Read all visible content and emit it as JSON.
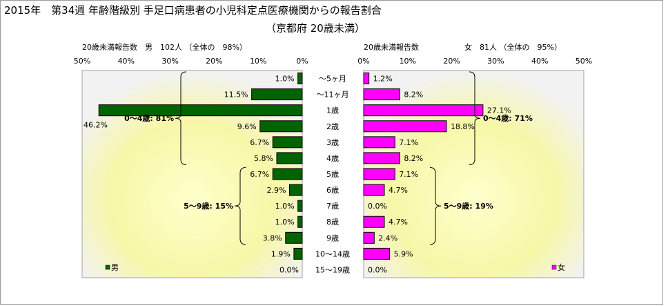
{
  "title": "2015年　第34週 年齢階級別 手足口病患者の小児科定点医療機関からの報告割合",
  "subtitle": "（京都府 20歳未満）",
  "chart_data": {
    "type": "bar",
    "orientation": "horizontal-butterfly",
    "categories": [
      "～5ヶ月",
      "～11ヶ月",
      "1歳",
      "2歳",
      "3歳",
      "4歳",
      "5歳",
      "6歳",
      "7歳",
      "8歳",
      "9歳",
      "10～14歳",
      "15～19歳"
    ],
    "xlim": [
      0,
      50
    ],
    "ticks": [
      0,
      10,
      20,
      30,
      40,
      50
    ],
    "tick_labels": [
      "0%",
      "10%",
      "20%",
      "30%",
      "40%",
      "50%"
    ],
    "series": [
      {
        "name": "男",
        "color": "#006400",
        "header": "20歳未満報告数　男　102人 （全体の　98%）",
        "values": [
          1.0,
          11.5,
          46.2,
          9.6,
          6.7,
          5.8,
          6.7,
          2.9,
          1.0,
          1.0,
          3.8,
          1.9,
          0.0
        ],
        "labels": [
          "1.0%",
          "11.5%",
          "46.2%",
          "9.6%",
          "6.7%",
          "5.8%",
          "6.7%",
          "2.9%",
          "1.0%",
          "1.0%",
          "3.8%",
          "1.9%",
          "0.0%"
        ],
        "legend": "男",
        "groups": [
          {
            "label": "0～4歳: 81%",
            "from": 0,
            "to": 5
          },
          {
            "label": "5～9歳: 15%",
            "from": 6,
            "to": 10
          }
        ]
      },
      {
        "name": "女",
        "color": "#ff00ff",
        "header": "20歳未満報告数　　　　　　女　81人 （全体の　95%）",
        "values": [
          1.2,
          8.2,
          27.1,
          18.8,
          7.1,
          8.2,
          7.1,
          4.7,
          0.0,
          4.7,
          2.4,
          5.9,
          0.0
        ],
        "labels": [
          "1.2%",
          "8.2%",
          "27.1%",
          "18.8%",
          "7.1%",
          "8.2%",
          "7.1%",
          "4.7%",
          "0.0%",
          "4.7%",
          "2.4%",
          "5.9%",
          "0.0%"
        ],
        "legend": "女",
        "groups": [
          {
            "label": "0～4歳: 71%",
            "from": 0,
            "to": 5
          },
          {
            "label": "5～9歳: 19%",
            "from": 6,
            "to": 10
          }
        ]
      }
    ]
  }
}
